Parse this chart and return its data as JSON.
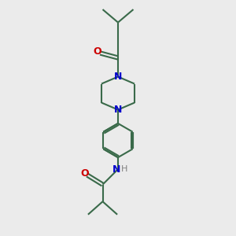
{
  "bg_color": "#ebebeb",
  "bond_color": "#3a6a4a",
  "N_color": "#0000cc",
  "O_color": "#cc0000",
  "H_color": "#808080",
  "line_width": 1.5,
  "font_size_atom": 8.5,
  "figsize": [
    3.0,
    3.0
  ],
  "dpi": 100,
  "xlim": [
    0,
    10
  ],
  "ylim": [
    0,
    10
  ]
}
